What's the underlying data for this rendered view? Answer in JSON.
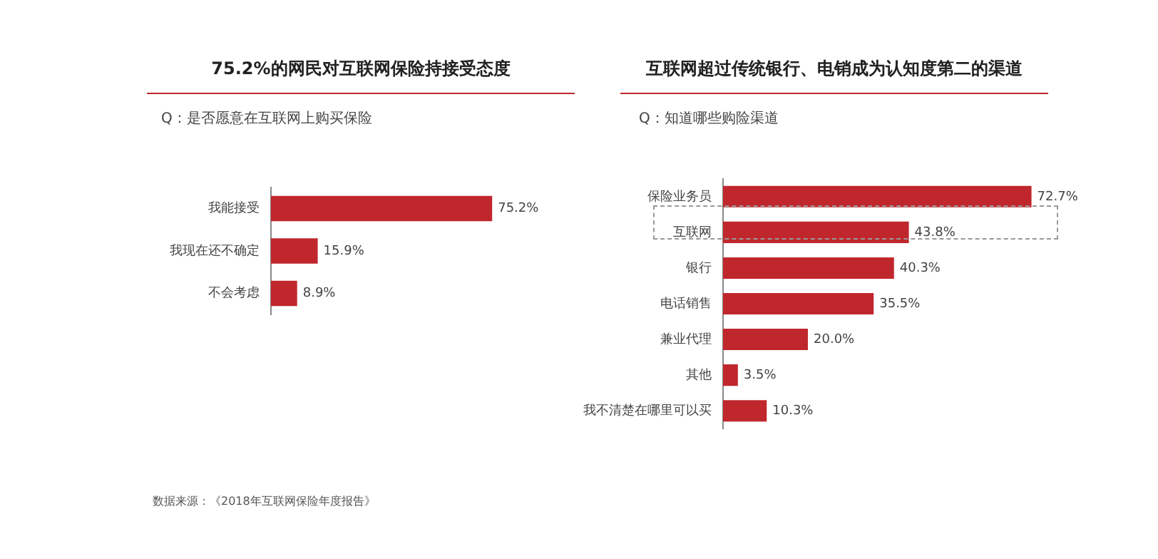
{
  "chart_data": [
    {
      "type": "bar",
      "orientation": "horizontal",
      "title": "75.2%的网民对互联网保险持接受态度",
      "subtitle": "Q：是否愿意在互联网上购买保险",
      "categories": [
        "我能接受",
        "我现在还不确定",
        "不会考虑"
      ],
      "values": [
        75.2,
        15.9,
        8.9
      ],
      "value_labels": [
        "75.2%",
        "15.9%",
        "8.9%"
      ],
      "color": "#c0272d",
      "tick_labels": "y",
      "grid": false,
      "legend": false,
      "annotations": [
        "数据来源：《2018年互联网保险年度报告》"
      ]
    },
    {
      "type": "bar",
      "orientation": "horizontal",
      "title": "互联网超过传统银行、电销成为认知度第二的渠道",
      "subtitle": "Q：知道哪些购险渠道",
      "categories": [
        "保险业务员",
        "互联网",
        "银行",
        "电话销售",
        "兼业代理",
        "其他",
        "我不清楚在哪里可以买"
      ],
      "values": [
        72.7,
        43.8,
        40.3,
        35.5,
        20.0,
        3.5,
        10.3
      ],
      "value_labels": [
        "72.7%",
        "43.8%",
        "40.3%",
        "35.5%",
        "20.0%",
        "3.5%",
        "10.3%"
      ],
      "color": "#c0272d",
      "tick_labels": "y",
      "grid": false,
      "legend": false
    }
  ]
}
